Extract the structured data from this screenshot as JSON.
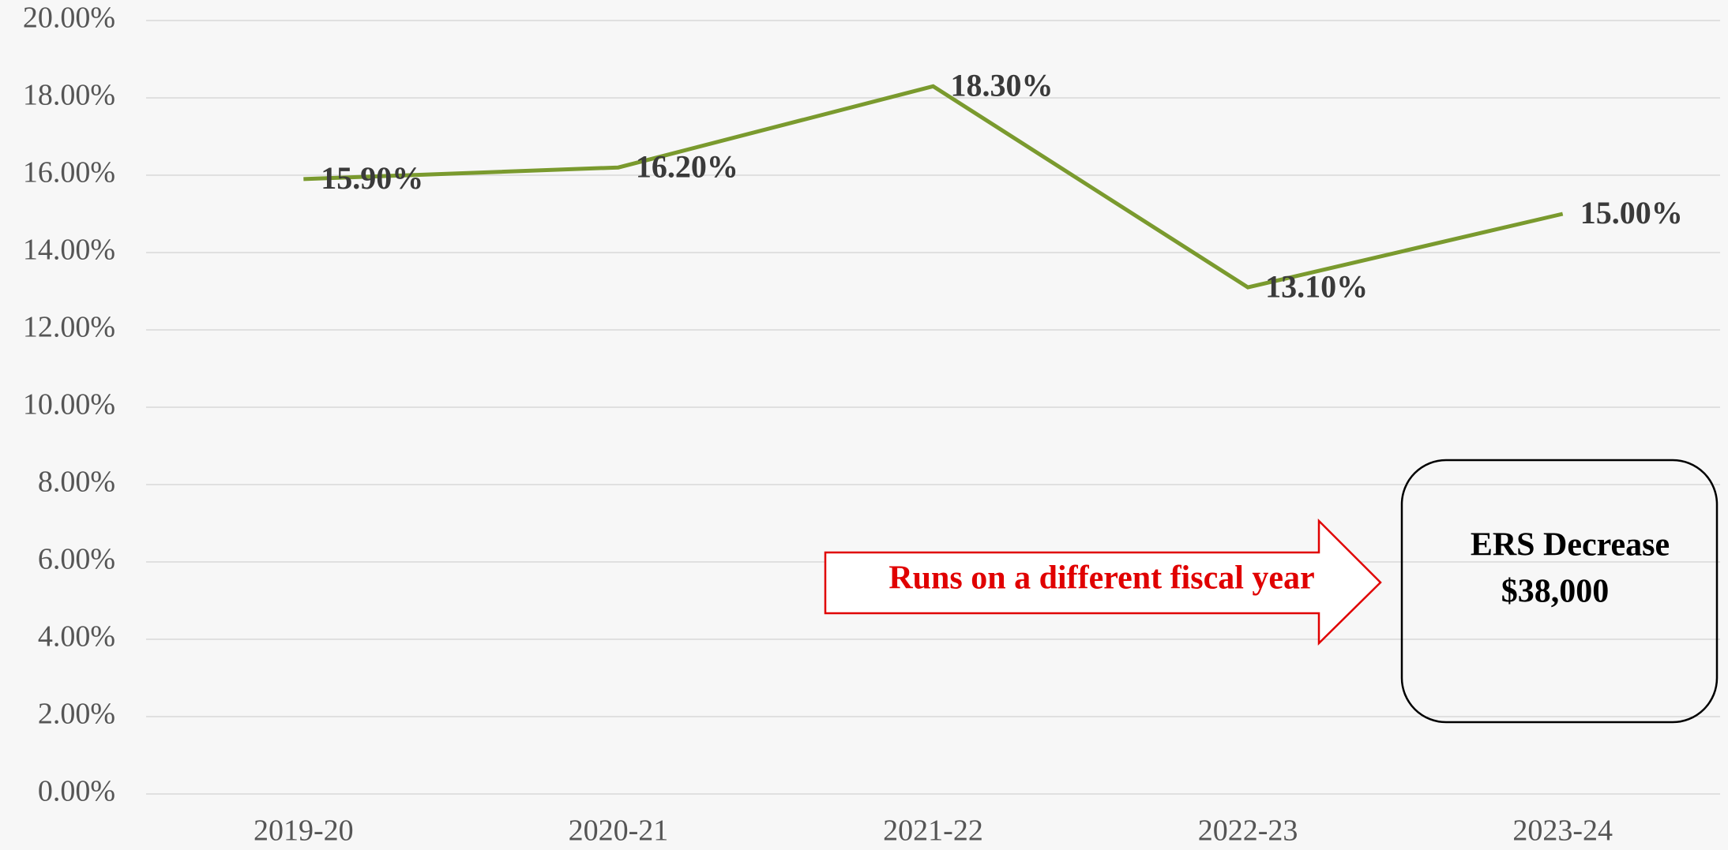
{
  "chart_data": {
    "type": "line",
    "categories": [
      "2019-20",
      "2020-21",
      "2021-22",
      "2022-23",
      "2023-24"
    ],
    "series": [
      {
        "color": "#7a9a2e",
        "values": [
          15.9,
          16.2,
          18.3,
          13.1,
          15.0
        ],
        "value_labels": [
          "15.90%",
          "16.20%",
          "18.30%",
          "13.10%",
          "15.00%"
        ]
      }
    ],
    "ylim": [
      0,
      20
    ],
    "yticks": [
      {
        "value": 0,
        "label": "0.00%"
      },
      {
        "value": 2,
        "label": "2.00%"
      },
      {
        "value": 4,
        "label": "4.00%"
      },
      {
        "value": 6,
        "label": "6.00%"
      },
      {
        "value": 8,
        "label": "8.00%"
      },
      {
        "value": 10,
        "label": "10.00%"
      },
      {
        "value": 12,
        "label": "12.00%"
      },
      {
        "value": 14,
        "label": "14.00%"
      },
      {
        "value": 16,
        "label": "16.00%"
      },
      {
        "value": 18,
        "label": "18.00%"
      },
      {
        "value": 20,
        "label": "20.00%"
      }
    ],
    "grid": true,
    "annotations": [
      "Runs on a different fiscal year",
      "ERS Decrease",
      "$38,000"
    ]
  }
}
